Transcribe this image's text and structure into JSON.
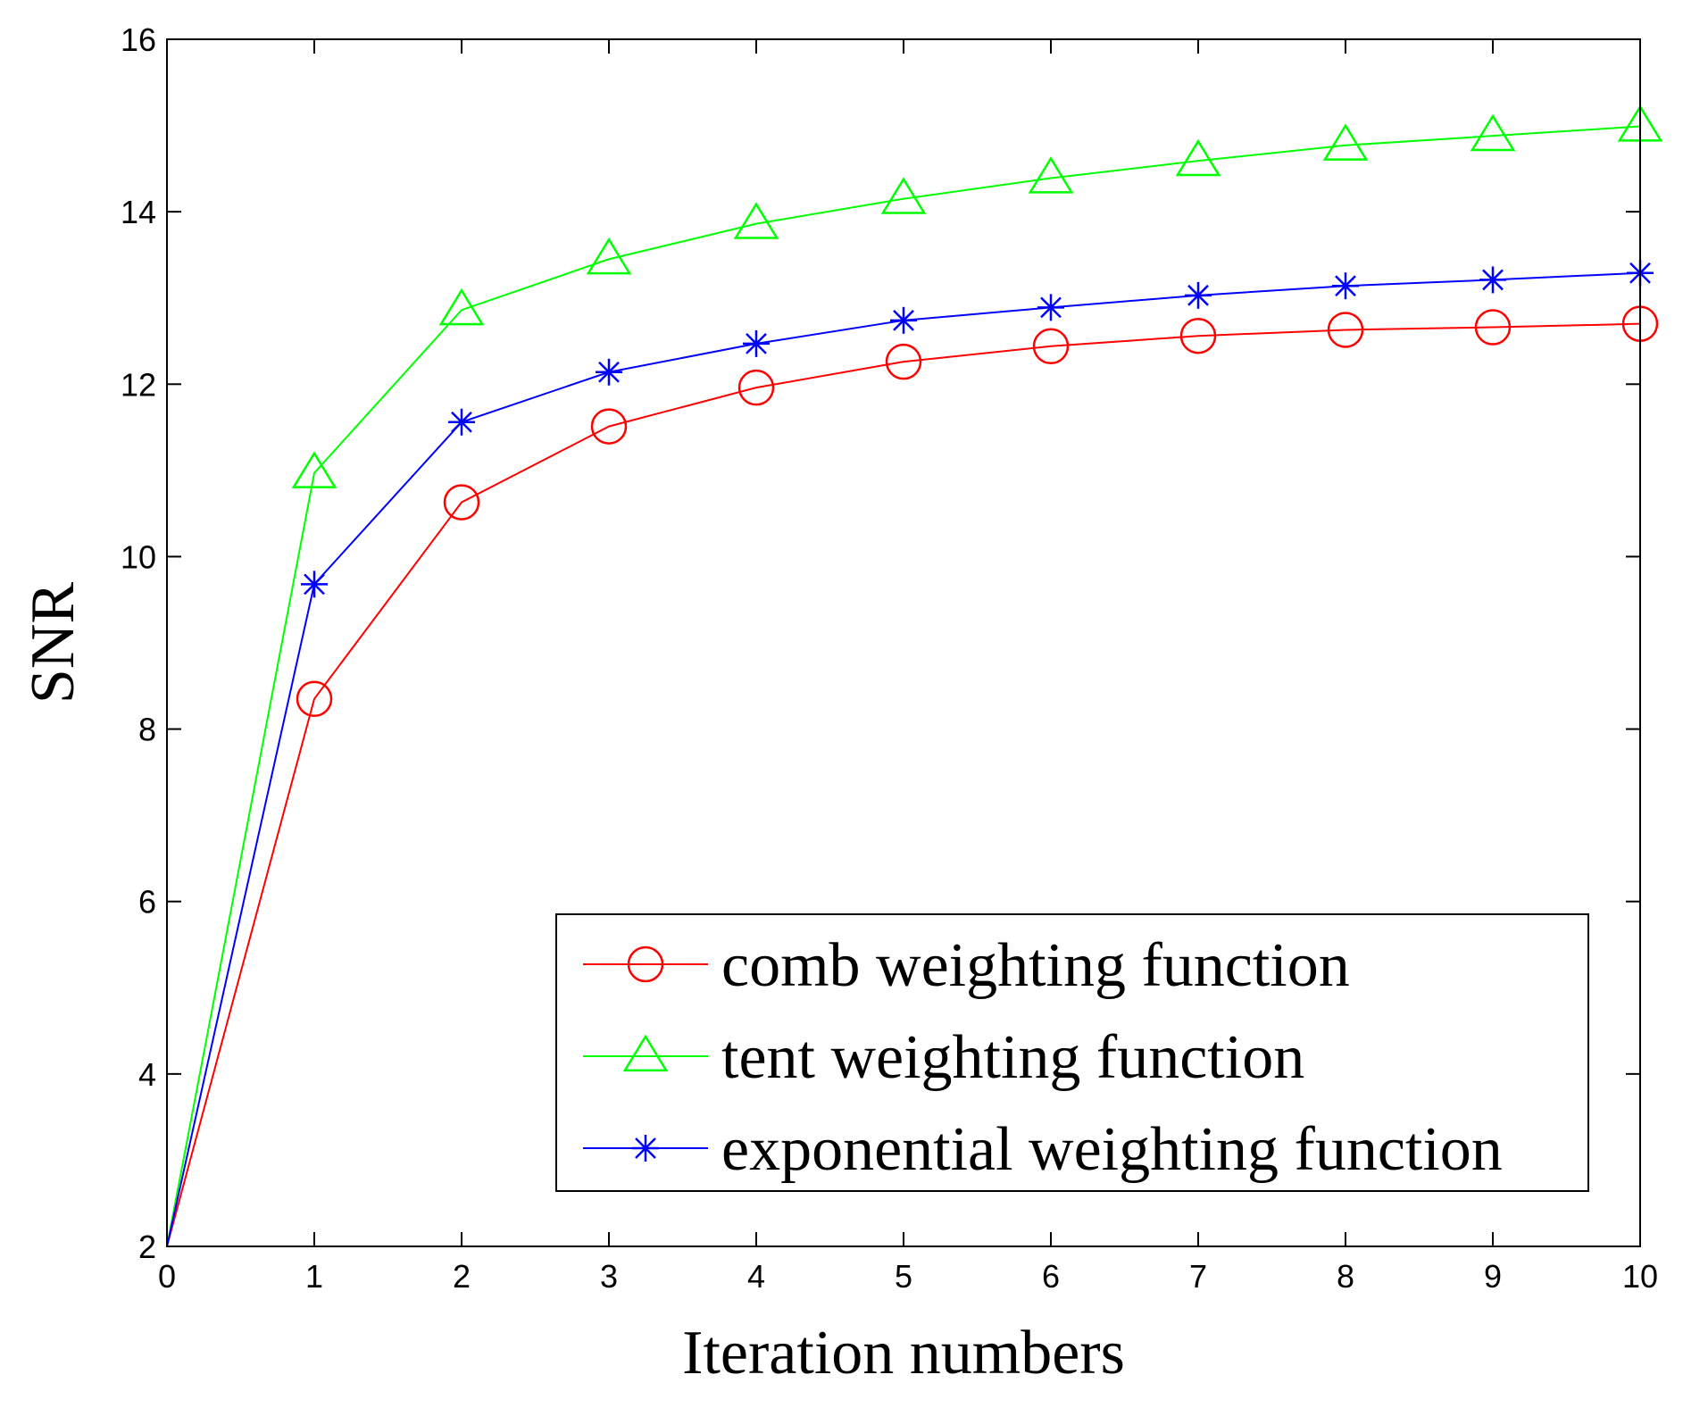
{
  "chart_data": {
    "type": "line",
    "title": "",
    "xlabel": "Iteration numbers",
    "ylabel": "SNR",
    "xlim": [
      0,
      10
    ],
    "ylim": [
      2,
      16
    ],
    "xticks": [
      0,
      1,
      2,
      3,
      4,
      5,
      6,
      7,
      8,
      9,
      10
    ],
    "yticks": [
      2,
      4,
      6,
      8,
      10,
      12,
      14,
      16
    ],
    "grid": false,
    "legend_position": "bottom-right",
    "x": [
      0,
      1,
      2,
      3,
      4,
      5,
      6,
      7,
      8,
      9,
      10
    ],
    "series": [
      {
        "name": "comb weighting function",
        "color": "#ff0000",
        "marker": "circle",
        "values": [
          2.0,
          8.35,
          10.63,
          11.51,
          11.96,
          12.26,
          12.44,
          12.56,
          12.63,
          12.66,
          12.7
        ]
      },
      {
        "name": "tent weighting function",
        "color": "#00ff00",
        "marker": "triangle",
        "values": [
          2.0,
          10.97,
          12.86,
          13.45,
          13.86,
          14.15,
          14.39,
          14.59,
          14.77,
          14.88,
          14.99
        ]
      },
      {
        "name": "exponential weighting function",
        "color": "#0000ff",
        "marker": "star",
        "values": [
          2.0,
          9.68,
          11.56,
          12.14,
          12.47,
          12.74,
          12.89,
          13.03,
          13.14,
          13.21,
          13.29
        ]
      }
    ]
  }
}
